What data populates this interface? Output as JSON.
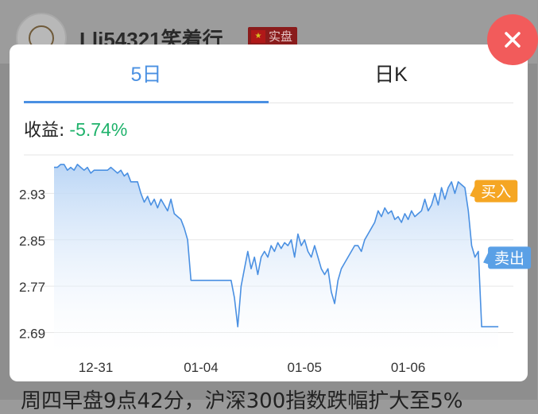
{
  "background": {
    "username": "Lli54321笑着行",
    "badge_label": "实盘",
    "bottom_text": "周四早盘9点42分，沪深300指数跌幅扩大至5%"
  },
  "close_icon": "close-icon",
  "tabs": [
    {
      "label": "5日",
      "active": true
    },
    {
      "label": "日K",
      "active": false
    }
  ],
  "gain": {
    "label": "收益:",
    "value": "-5.74%"
  },
  "chart_data": {
    "type": "area",
    "title": "",
    "ylim": [
      2.655,
      2.995
    ],
    "yticks": [
      2.69,
      2.77,
      2.85,
      2.93
    ],
    "ytick_labels": [
      "2.69",
      "2.77",
      "2.85",
      "2.93"
    ],
    "xticks": [
      {
        "label": "12-31",
        "x": 0.25
      },
      {
        "label": "01-04",
        "x": 0.88
      },
      {
        "label": "01-05",
        "x": 1.5
      },
      {
        "label": "01-06",
        "x": 2.12
      }
    ],
    "xlim": [
      0,
      2.75
    ],
    "grid": true,
    "line_color": "#4a90e2",
    "fill_color": "#c9def6",
    "series": [
      {
        "x": [
          0,
          0.02,
          0.04,
          0.06,
          0.08,
          0.1,
          0.12,
          0.14,
          0.16,
          0.18,
          0.2,
          0.22,
          0.24,
          0.26,
          0.28,
          0.3,
          0.32,
          0.34,
          0.36,
          0.38,
          0.4,
          0.42,
          0.44,
          0.46,
          0.48,
          0.5,
          0.52,
          0.54,
          0.56,
          0.58,
          0.6,
          0.62,
          0.64,
          0.66,
          0.68,
          0.7,
          0.72,
          0.74,
          0.76,
          0.78,
          0.8,
          0.82,
          0.84,
          0.86,
          0.88,
          0.9,
          0.92,
          0.94,
          0.96,
          0.98,
          1.0,
          1.02,
          1.04,
          1.06,
          1.08,
          1.1,
          1.12,
          1.14,
          1.16,
          1.18,
          1.2,
          1.22,
          1.24,
          1.26,
          1.28,
          1.3,
          1.32,
          1.34,
          1.36,
          1.38,
          1.4,
          1.42,
          1.44,
          1.46,
          1.48,
          1.5,
          1.52,
          1.54,
          1.56,
          1.58,
          1.6,
          1.62,
          1.64,
          1.66,
          1.68,
          1.7,
          1.72,
          1.74,
          1.76,
          1.78,
          1.8,
          1.82,
          1.84,
          1.86,
          1.88,
          1.9,
          1.92,
          1.94,
          1.96,
          1.98,
          2.0,
          2.02,
          2.04,
          2.06,
          2.08,
          2.1,
          2.12,
          2.14,
          2.16,
          2.18,
          2.2,
          2.22,
          2.24,
          2.26,
          2.28,
          2.3,
          2.32,
          2.34,
          2.36,
          2.38,
          2.4,
          2.42,
          2.44,
          2.46,
          2.48,
          2.5,
          2.52,
          2.54,
          2.56,
          2.58,
          2.6,
          2.62,
          2.64,
          2.66
        ],
        "values": [
          2.975,
          2.975,
          2.98,
          2.98,
          2.97,
          2.975,
          2.97,
          2.98,
          2.975,
          2.97,
          2.975,
          2.965,
          2.97,
          2.97,
          2.97,
          2.97,
          2.97,
          2.975,
          2.97,
          2.965,
          2.97,
          2.96,
          2.965,
          2.95,
          2.95,
          2.95,
          2.93,
          2.915,
          2.925,
          2.91,
          2.92,
          2.905,
          2.92,
          2.91,
          2.9,
          2.92,
          2.895,
          2.89,
          2.885,
          2.87,
          2.85,
          2.78,
          2.78,
          2.78,
          2.78,
          2.78,
          2.78,
          2.78,
          2.78,
          2.78,
          2.78,
          2.78,
          2.78,
          2.78,
          2.75,
          2.7,
          2.77,
          2.8,
          2.83,
          2.8,
          2.82,
          2.79,
          2.82,
          2.83,
          2.82,
          2.84,
          2.83,
          2.845,
          2.835,
          2.845,
          2.84,
          2.85,
          2.82,
          2.86,
          2.84,
          2.85,
          2.83,
          2.82,
          2.84,
          2.82,
          2.8,
          2.79,
          2.8,
          2.76,
          2.74,
          2.78,
          2.8,
          2.81,
          2.82,
          2.83,
          2.84,
          2.84,
          2.83,
          2.85,
          2.86,
          2.87,
          2.88,
          2.9,
          2.89,
          2.905,
          2.895,
          2.9,
          2.885,
          2.89,
          2.88,
          2.895,
          2.885,
          2.9,
          2.89,
          2.895,
          2.9,
          2.92,
          2.9,
          2.91,
          2.93,
          2.91,
          2.94,
          2.92,
          2.94,
          2.95,
          2.93,
          2.95,
          2.945,
          2.94,
          2.9,
          2.84,
          2.82,
          2.83,
          2.7,
          2.7,
          2.7,
          2.7,
          2.7,
          2.7
        ]
      }
    ],
    "annotations": [
      {
        "text": "买入",
        "color": "#f5a623",
        "x": 2.48,
        "y": 2.945
      },
      {
        "text": "卖出",
        "color": "#5aa0e6",
        "x": 2.56,
        "y": 2.83
      }
    ]
  }
}
